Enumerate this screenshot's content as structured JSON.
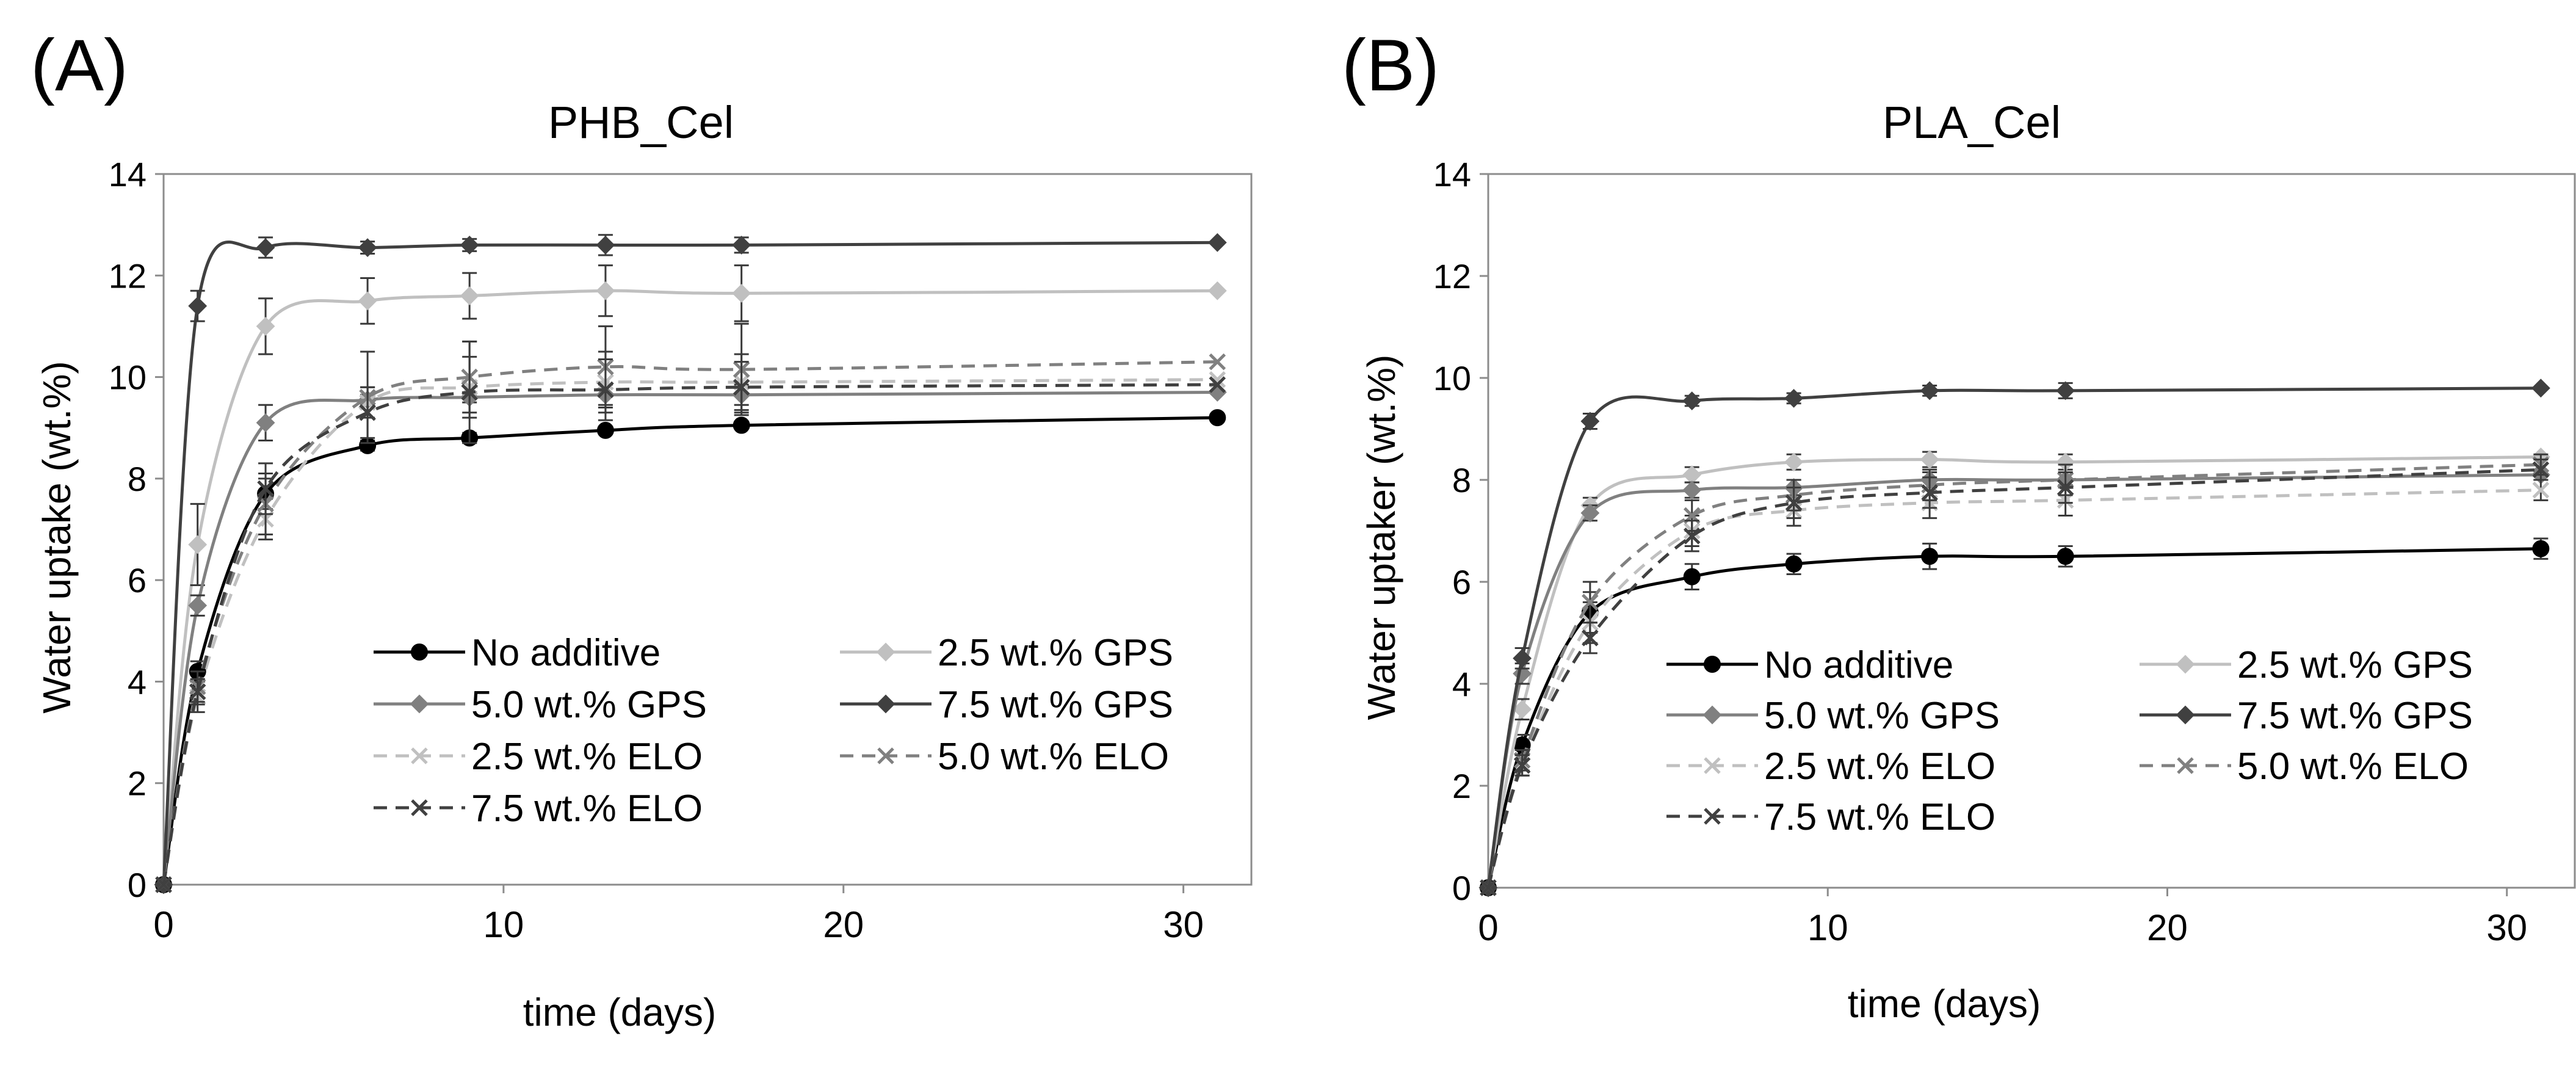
{
  "chart_data": [
    {
      "type": "line",
      "panel_label": "(A)",
      "title": "PHB_Cel",
      "xlabel": "time (days)",
      "ylabel": "Water uptake (wt.%)",
      "xlim": [
        0,
        32
      ],
      "ylim": [
        0,
        14
      ],
      "xticks": [
        0,
        10,
        20,
        30
      ],
      "yticks": [
        0,
        2,
        4,
        6,
        8,
        10,
        12,
        14
      ],
      "grid": false,
      "legend": "bottom-right",
      "x": [
        0,
        1,
        3,
        6,
        9,
        13,
        17,
        31
      ],
      "series": [
        {
          "name": "No additive",
          "color": "#000000",
          "dash": "solid",
          "marker": "circle",
          "values": [
            0,
            4.2,
            7.7,
            8.65,
            8.8,
            8.95,
            9.05,
            9.2
          ],
          "errors": [
            0,
            0.2,
            0.3,
            0.1,
            0.1,
            0.05,
            0.05,
            0.05
          ]
        },
        {
          "name": "2.5 wt.% GPS",
          "color": "#c0c0c0",
          "dash": "solid",
          "marker": "diamond",
          "values": [
            0,
            6.7,
            11.0,
            11.5,
            11.6,
            11.7,
            11.65,
            11.7
          ],
          "errors": [
            0,
            0.8,
            0.55,
            0.45,
            0.45,
            0.5,
            0.55,
            0
          ]
        },
        {
          "name": "5.0 wt.% GPS",
          "color": "#808080",
          "dash": "solid",
          "marker": "diamond",
          "values": [
            0,
            5.5,
            9.1,
            9.55,
            9.6,
            9.65,
            9.65,
            9.7
          ],
          "errors": [
            0,
            0.2,
            0.35,
            0.1,
            0.1,
            0.2,
            0.2,
            0
          ]
        },
        {
          "name": "7.5 wt.% GPS",
          "color": "#404040",
          "dash": "solid",
          "marker": "diamond",
          "values": [
            0,
            11.4,
            12.55,
            12.55,
            12.6,
            12.6,
            12.6,
            12.65
          ],
          "errors": [
            0,
            0.3,
            0.2,
            0.12,
            0.12,
            0.2,
            0.15,
            0
          ]
        },
        {
          "name": "2.5 wt.% ELO",
          "color": "#c0c0c0",
          "dash": "dashed",
          "marker": "x",
          "values": [
            0,
            3.7,
            7.2,
            9.5,
            9.8,
            9.9,
            9.9,
            9.95
          ],
          "errors": [
            0,
            0.3,
            0.4,
            0.3,
            0.6,
            0.6,
            0.55,
            0
          ]
        },
        {
          "name": "5.0 wt.% ELO",
          "color": "#808080",
          "dash": "dashed",
          "marker": "x",
          "values": [
            0,
            3.9,
            7.5,
            9.6,
            10.0,
            10.2,
            10.15,
            10.3
          ],
          "errors": [
            0,
            0.3,
            0.6,
            0.9,
            0.7,
            0.8,
            0.9,
            0
          ]
        },
        {
          "name": "7.5 wt.% ELO",
          "color": "#404040",
          "dash": "dashed",
          "marker": "x",
          "values": [
            0,
            3.8,
            7.8,
            9.3,
            9.7,
            9.75,
            9.8,
            9.85
          ],
          "errors": [
            0,
            0.25,
            0.5,
            0.5,
            1.0,
            0.6,
            0.5,
            0
          ]
        }
      ]
    },
    {
      "type": "line",
      "panel_label": "(B)",
      "title": "PLA_Cel",
      "xlabel": "time (days)",
      "ylabel": "Water uptaker (wt.%)",
      "xlim": [
        0,
        32
      ],
      "ylim": [
        0,
        14
      ],
      "xticks": [
        0,
        10,
        20,
        30
      ],
      "yticks": [
        0,
        2,
        4,
        6,
        8,
        10,
        12,
        14
      ],
      "grid": false,
      "legend": "bottom-right",
      "x": [
        0,
        1,
        3,
        6,
        9,
        13,
        17,
        31
      ],
      "series": [
        {
          "name": "No additive",
          "color": "#000000",
          "dash": "solid",
          "marker": "circle",
          "values": [
            0,
            2.8,
            5.4,
            6.1,
            6.35,
            6.5,
            6.5,
            6.65
          ],
          "errors": [
            0,
            0.2,
            0.4,
            0.25,
            0.2,
            0.25,
            0.2,
            0.2
          ]
        },
        {
          "name": "2.5 wt.% GPS",
          "color": "#c0c0c0",
          "dash": "solid",
          "marker": "diamond",
          "values": [
            0,
            3.5,
            7.5,
            8.1,
            8.35,
            8.4,
            8.35,
            8.45
          ],
          "errors": [
            0,
            0.2,
            0.15,
            0.15,
            0.15,
            0.15,
            0.15,
            0
          ]
        },
        {
          "name": "5.0 wt.% GPS",
          "color": "#808080",
          "dash": "solid",
          "marker": "diamond",
          "values": [
            0,
            4.2,
            7.35,
            7.8,
            7.85,
            8.0,
            8.0,
            8.1
          ],
          "errors": [
            0,
            0.2,
            0.15,
            0.15,
            0.15,
            0.15,
            0.15,
            0
          ]
        },
        {
          "name": "7.5 wt.% GPS",
          "color": "#404040",
          "dash": "solid",
          "marker": "diamond",
          "values": [
            0,
            4.5,
            9.15,
            9.55,
            9.6,
            9.75,
            9.75,
            9.8
          ],
          "errors": [
            0,
            0.2,
            0.15,
            0.1,
            0.1,
            0.1,
            0.15,
            0
          ]
        },
        {
          "name": "2.5 wt.% ELO",
          "color": "#c0c0c0",
          "dash": "dashed",
          "marker": "x",
          "values": [
            0,
            2.4,
            5.2,
            7.0,
            7.4,
            7.55,
            7.6,
            7.8
          ],
          "errors": [
            0,
            0.2,
            0.4,
            0.3,
            0.3,
            0.3,
            0.3,
            0.2
          ]
        },
        {
          "name": "5.0 wt.% ELO",
          "color": "#808080",
          "dash": "dashed",
          "marker": "x",
          "values": [
            0,
            2.5,
            5.6,
            7.3,
            7.7,
            7.9,
            8.0,
            8.3
          ],
          "errors": [
            0,
            0.2,
            0.4,
            0.3,
            0.3,
            0.3,
            0.3,
            0.2
          ]
        },
        {
          "name": "7.5 wt.% ELO",
          "color": "#404040",
          "dash": "dashed",
          "marker": "x",
          "values": [
            0,
            2.4,
            4.9,
            6.9,
            7.55,
            7.75,
            7.85,
            8.2
          ],
          "errors": [
            0,
            0.2,
            0.3,
            0.3,
            0.3,
            0.3,
            0.3,
            0.2
          ]
        }
      ]
    }
  ]
}
